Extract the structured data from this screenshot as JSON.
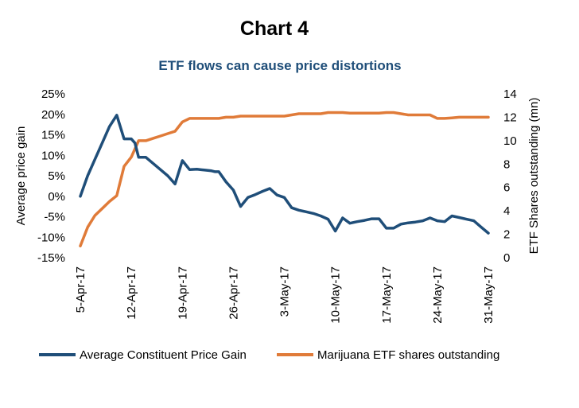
{
  "chart_data": {
    "type": "line",
    "title": "Chart 4",
    "subtitle": "ETF flows can cause price distortions",
    "ylabel_left": "Average price gain",
    "ylabel_right": "ETF Shares outstanding (mn)",
    "ylim_left": [
      -0.15,
      0.25
    ],
    "ylim_right": [
      0,
      14
    ],
    "left_ticks": [
      "25%",
      "20%",
      "15%",
      "10%",
      "5%",
      "0%",
      "-5%",
      "-10%",
      "-15%"
    ],
    "right_ticks": [
      "14",
      "12",
      "10",
      "8",
      "6",
      "4",
      "2",
      "0"
    ],
    "x_ticks": [
      "5-Apr-17",
      "12-Apr-17",
      "19-Apr-17",
      "26-Apr-17",
      "3-May-17",
      "10-May-17",
      "17-May-17",
      "24-May-17",
      "31-May-17"
    ],
    "x_range_days": [
      0,
      56
    ],
    "series": [
      {
        "name": "Average Constituent Price Gain",
        "axis": "left",
        "color": "#1f4e79",
        "x": [
          0,
          1,
          2,
          3,
          4,
          5,
          6,
          7,
          7.5,
          8,
          9,
          10,
          11,
          12,
          13,
          14,
          15,
          16,
          17,
          18,
          18.5,
          19,
          20,
          21,
          22,
          23,
          24,
          25,
          26,
          27,
          28,
          29,
          30,
          31,
          32,
          33,
          34,
          35,
          36,
          37,
          38,
          39,
          40,
          41,
          42,
          43,
          44,
          45,
          46,
          47,
          48,
          49,
          50,
          51,
          52,
          53,
          54,
          55,
          56
        ],
        "values": [
          0.0,
          0.05,
          0.09,
          0.13,
          0.17,
          0.198,
          0.14,
          0.14,
          0.13,
          0.095,
          0.095,
          0.08,
          0.065,
          0.05,
          0.03,
          0.087,
          0.065,
          0.066,
          0.064,
          0.062,
          0.06,
          0.06,
          0.035,
          0.015,
          -0.025,
          -0.003,
          0.004,
          0.012,
          0.019,
          0.003,
          -0.003,
          -0.028,
          -0.034,
          -0.038,
          -0.042,
          -0.048,
          -0.056,
          -0.085,
          -0.053,
          -0.066,
          -0.062,
          -0.059,
          -0.055,
          -0.055,
          -0.078,
          -0.078,
          -0.068,
          -0.065,
          -0.063,
          -0.06,
          -0.053,
          -0.06,
          -0.062,
          -0.048,
          -0.052,
          -0.056,
          -0.06,
          -0.075,
          -0.09
        ]
      },
      {
        "name": "Marijuana ETF shares outstanding",
        "axis": "right",
        "color": "#e07b39",
        "x": [
          0,
          1,
          2,
          3,
          4,
          5,
          6,
          7,
          8,
          9,
          10,
          11,
          12,
          13,
          14,
          15,
          16,
          17,
          18,
          19,
          20,
          21,
          22,
          23,
          24,
          25,
          26,
          27,
          28,
          29,
          30,
          31,
          32,
          33,
          34,
          35,
          36,
          37,
          38,
          39,
          40,
          41,
          42,
          43,
          44,
          45,
          46,
          47,
          48,
          49,
          50,
          51,
          52,
          53,
          54,
          55,
          56
        ],
        "values": [
          1.0,
          2.6,
          3.6,
          4.2,
          4.8,
          5.3,
          7.8,
          8.6,
          10.0,
          10.0,
          10.2,
          10.4,
          10.6,
          10.8,
          11.6,
          11.9,
          11.9,
          11.9,
          11.9,
          11.9,
          12.0,
          12.0,
          12.1,
          12.1,
          12.1,
          12.1,
          12.1,
          12.1,
          12.1,
          12.2,
          12.3,
          12.3,
          12.3,
          12.3,
          12.4,
          12.4,
          12.4,
          12.35,
          12.35,
          12.35,
          12.35,
          12.35,
          12.4,
          12.4,
          12.3,
          12.2,
          12.2,
          12.2,
          12.2,
          11.9,
          11.9,
          11.95,
          12.0,
          12.0,
          12.0,
          12.0,
          12.0
        ]
      }
    ],
    "legend": {
      "position": "bottom",
      "entries": [
        "Average Constituent Price Gain",
        "Marijuana ETF shares outstanding"
      ]
    },
    "grid": false
  }
}
